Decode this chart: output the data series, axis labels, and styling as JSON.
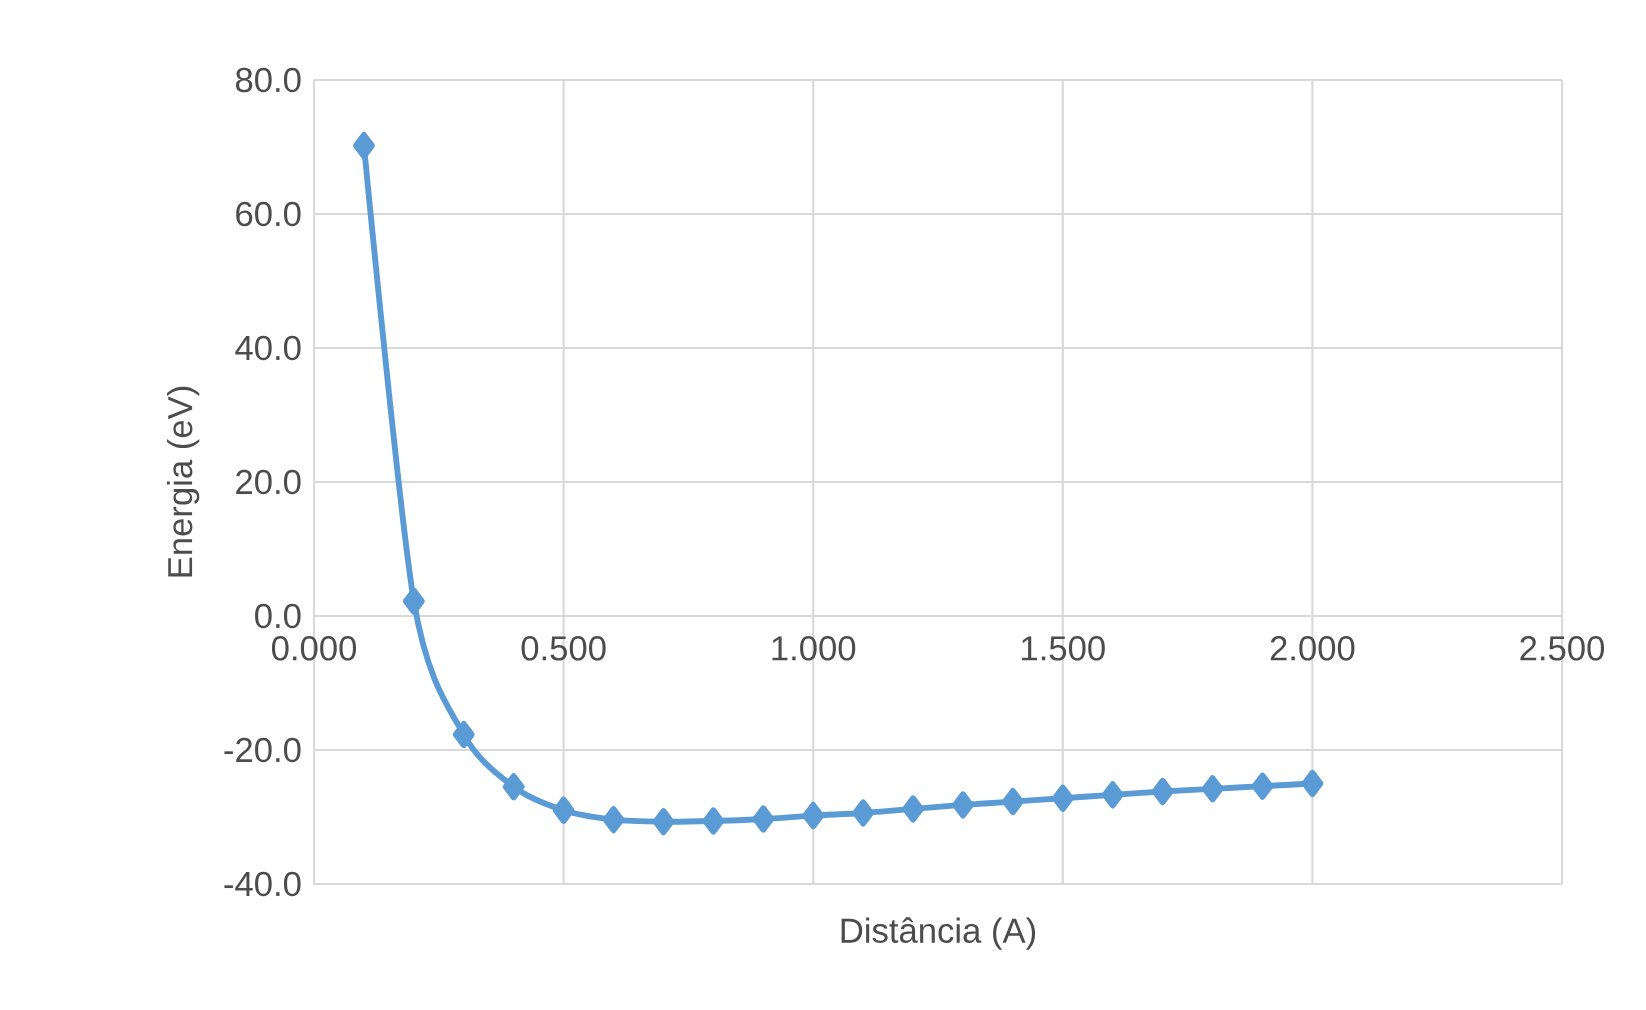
{
  "chart_data": {
    "type": "line",
    "xlabel": "Distância (A)",
    "ylabel": "Energia (eV)",
    "x": [
      0.1,
      0.2,
      0.3,
      0.4,
      0.5,
      0.6,
      0.7,
      0.8,
      0.9,
      1.0,
      1.1,
      1.2,
      1.3,
      1.4,
      1.5,
      1.6,
      1.7,
      1.8,
      1.9,
      2.0
    ],
    "series": [
      {
        "color": "#5b9bd5",
        "values": [
          70.2,
          2.2,
          -17.7,
          -25.5,
          -29.0,
          -30.4,
          -30.7,
          -30.6,
          -30.3,
          -29.8,
          -29.4,
          -28.8,
          -28.2,
          -27.7,
          -27.2,
          -26.7,
          -26.2,
          -25.8,
          -25.4,
          -25.0
        ]
      }
    ],
    "xlim": [
      0,
      2.5
    ],
    "ylim": [
      -40,
      80
    ],
    "xticks": [
      {
        "value": 0,
        "label": "0.000"
      },
      {
        "value": 0.5,
        "label": "0.500"
      },
      {
        "value": 1,
        "label": "1.000"
      },
      {
        "value": 1.5,
        "label": "1.500"
      },
      {
        "value": 2,
        "label": "2.000"
      },
      {
        "value": 2.5,
        "label": "2.500"
      }
    ],
    "yticks": [
      {
        "value": -40,
        "label": "-40.0"
      },
      {
        "value": -20,
        "label": "-20.0"
      },
      {
        "value": 0,
        "label": "0.0"
      },
      {
        "value": 20,
        "label": "20.0"
      },
      {
        "value": 40,
        "label": "40.0"
      },
      {
        "value": 60,
        "label": "60.0"
      },
      {
        "value": 80,
        "label": "80.0"
      }
    ],
    "grid": true,
    "marker": "diamond",
    "line_style": "solid"
  }
}
